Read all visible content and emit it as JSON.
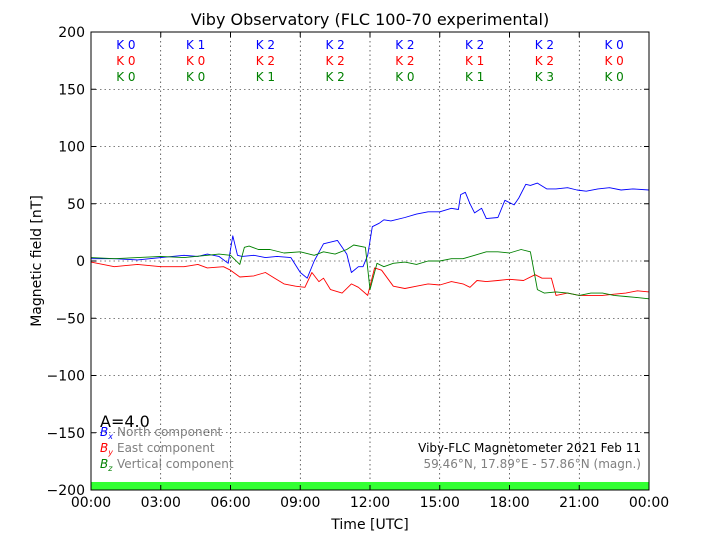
{
  "chart_data": {
    "type": "line",
    "title": "Viby Observatory (FLC 100-70 experimental)",
    "xlabel": "Time [UTC]",
    "ylabel": "Magnetic field [nT]",
    "xlim": [
      0,
      24
    ],
    "ylim": [
      -200,
      200
    ],
    "x_ticks": [
      0,
      3,
      6,
      9,
      12,
      15,
      18,
      21,
      24
    ],
    "x_tick_labels": [
      "00:00",
      "03:00",
      "06:00",
      "09:00",
      "12:00",
      "15:00",
      "18:00",
      "21:00",
      "00:00"
    ],
    "y_ticks": [
      -200,
      -150,
      -100,
      -50,
      0,
      50,
      100,
      150,
      200
    ],
    "y_tick_labels": [
      "−200",
      "−150",
      "−100",
      "−50",
      "0",
      "50",
      "100",
      "150",
      "200"
    ],
    "grid": true,
    "legend_position": "bottom-left",
    "legend": [
      {
        "symbol": "B",
        "sub": "x",
        "label": "North component",
        "color": "#0000ff"
      },
      {
        "symbol": "B",
        "sub": "y",
        "label": "East component",
        "color": "#ff0000"
      },
      {
        "symbol": "B",
        "sub": "z",
        "label": "Vertical component",
        "color": "#008000"
      }
    ],
    "a_index_label": "A=4.0",
    "info_line1": "Viby-FLC Magnetometer 2021 Feb 11",
    "info_line2": "59.46°N, 17.89°E - 57.86°N (magn.)",
    "status_bar_color": "#33ff33",
    "k_indices": {
      "colors": {
        "north": "#0000ff",
        "east": "#ff0000",
        "vertical": "#008000"
      },
      "north": [
        "K 0",
        "K 1",
        "K 2",
        "K 2",
        "K 2",
        "K 2",
        "K 2",
        "K 0"
      ],
      "east": [
        "K 0",
        "K 0",
        "K 2",
        "K 2",
        "K 2",
        "K 1",
        "K 2",
        "K 0"
      ],
      "vertical": [
        "K 0",
        "K 0",
        "K 1",
        "K 2",
        "K 0",
        "K 1",
        "K 3",
        "K 0"
      ]
    },
    "series": [
      {
        "name": "North component",
        "color": "#0000ff",
        "x": [
          0,
          1,
          2,
          3,
          4,
          4.6,
          5,
          5.5,
          5.9,
          6.1,
          6.3,
          6.5,
          7,
          7.5,
          8,
          8.6,
          9,
          9.3,
          9.6,
          10,
          10.6,
          11,
          11.2,
          11.5,
          11.7,
          11.9,
          12.1,
          12.4,
          12.6,
          12.9,
          13.5,
          14,
          14.5,
          15,
          15.5,
          15.8,
          15.9,
          16.1,
          16.3,
          16.5,
          16.8,
          17,
          17.5,
          17.8,
          18.2,
          18.4,
          18.7,
          18.9,
          19.2,
          19.6,
          20,
          20.5,
          20.9,
          21.3,
          21.8,
          22.3,
          22.8,
          23.3,
          24
        ],
        "y": [
          2,
          2,
          1,
          3,
          5,
          4,
          6,
          4,
          -2,
          22,
          5,
          4,
          5,
          3,
          4,
          3,
          -10,
          -15,
          0,
          15,
          18,
          6,
          -10,
          -5,
          -5,
          5,
          30,
          33,
          36,
          35,
          38,
          41,
          43,
          43,
          46,
          45,
          58,
          60,
          50,
          42,
          46,
          37,
          38,
          53,
          49,
          55,
          67,
          66,
          68,
          63,
          63,
          64,
          62,
          61,
          63,
          64,
          62,
          63,
          62
        ]
      },
      {
        "name": "East component",
        "color": "#ff0000",
        "x": [
          0,
          1,
          2,
          3,
          4,
          4.6,
          5,
          5.7,
          6,
          6.4,
          7,
          7.5,
          7.9,
          8.3,
          8.8,
          9.2,
          9.5,
          9.8,
          10,
          10.3,
          10.8,
          11.2,
          11.5,
          11.9,
          12.2,
          12.5,
          13,
          13.5,
          14,
          14.5,
          15,
          15.5,
          16,
          16.3,
          16.6,
          17,
          17.5,
          18,
          18.6,
          19.1,
          19.4,
          19.8,
          20,
          20.5,
          21,
          21.5,
          22,
          22.5,
          23,
          23.5,
          24
        ],
        "y": [
          -1,
          -5,
          -3,
          -5,
          -5,
          -3,
          -6,
          -5,
          -8,
          -14,
          -13,
          -10,
          -15,
          -20,
          -22,
          -23,
          -10,
          -18,
          -15,
          -25,
          -28,
          -20,
          -23,
          -30,
          -6,
          -8,
          -22,
          -24,
          -22,
          -20,
          -21,
          -18,
          -20,
          -23,
          -17,
          -18,
          -17,
          -16,
          -17,
          -12,
          -15,
          -15,
          -30,
          -28,
          -30,
          -30,
          -30,
          -29,
          -28,
          -26,
          -27
        ]
      },
      {
        "name": "Vertical component",
        "color": "#008000",
        "x": [
          0,
          1,
          2,
          3,
          4,
          5,
          5.5,
          6,
          6.4,
          6.6,
          6.8,
          7.2,
          7.7,
          8.3,
          9,
          9.6,
          10,
          10.5,
          11,
          11.3,
          11.8,
          12,
          12.3,
          12.6,
          13,
          13.5,
          14,
          14.5,
          15,
          15.5,
          16,
          16.5,
          17,
          17.5,
          18,
          18.5,
          18.9,
          19.2,
          19.5,
          20,
          20.5,
          21,
          21.5,
          22,
          22.5,
          23,
          23.5,
          24
        ],
        "y": [
          3,
          2,
          3,
          4,
          3,
          5,
          6,
          5,
          -3,
          12,
          13,
          10,
          10,
          7,
          8,
          5,
          8,
          6,
          10,
          14,
          12,
          -25,
          -2,
          -5,
          -2,
          -1,
          -3,
          0,
          0,
          2,
          2,
          5,
          8,
          8,
          7,
          10,
          8,
          -25,
          -28,
          -27,
          -28,
          -30,
          -28,
          -28,
          -30,
          -31,
          -32,
          -33
        ]
      }
    ]
  }
}
